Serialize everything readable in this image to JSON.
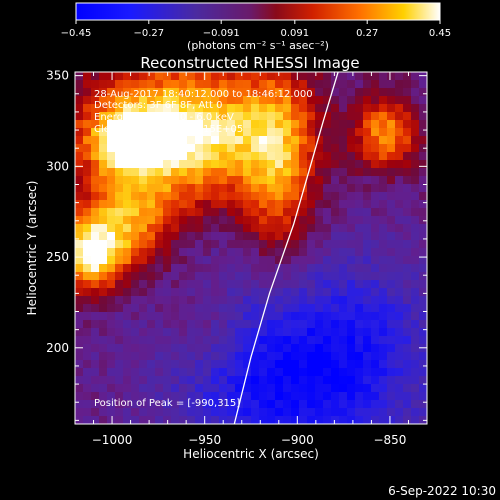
{
  "colorbar": {
    "ticks": [
      "-0.45",
      "-0.27",
      "-0.091",
      "0.091",
      "0.27",
      "0.45"
    ],
    "values": [
      -0.45,
      -0.27,
      -0.091,
      0.091,
      0.27,
      0.45
    ],
    "units_label": "(photons cm⁻² s⁻¹ asec⁻²)",
    "range": [
      -0.45,
      0.45
    ]
  },
  "footer": {
    "date": "6-Sep-2022 10:30"
  },
  "chart_data": {
    "type": "heatmap",
    "title": "Reconstructed RHESSI Image",
    "xlabel": "Heliocentric X (arcsec)",
    "ylabel": "Heliocentric Y (arcsec)",
    "xlim": [
      -1020,
      -830
    ],
    "ylim": [
      158,
      352
    ],
    "x_ticks": [
      -1000,
      -950,
      -900,
      -850
    ],
    "y_ticks": [
      200,
      250,
      300,
      350
    ],
    "annotations": [
      "28-Aug-2017 18:40:12.000 to 18:46:12.000",
      "Detectors: 3F 6F 8F, Att 0",
      "Energy Range: 3.0 - 6.0 keV",
      "Clean    Total Counts: 2.15E+05"
    ],
    "peak_label": "Position of Peak = [-990,315]",
    "peak": {
      "x": -990,
      "y": 315
    },
    "limb_curve": [
      [
        -934,
        158
      ],
      [
        -925,
        195
      ],
      [
        -915,
        230
      ],
      [
        -902,
        268
      ],
      [
        -893,
        300
      ],
      [
        -886,
        325
      ],
      [
        -878,
        352
      ]
    ],
    "sources": [
      {
        "x": -965,
        "y": 318,
        "sx": 38,
        "sy": 26,
        "amp": 0.55
      },
      {
        "x": -990,
        "y": 315,
        "sx": 12,
        "sy": 10,
        "amp": 0.35
      },
      {
        "x": -1012,
        "y": 252,
        "sx": 12,
        "sy": 14,
        "amp": 0.5
      },
      {
        "x": -990,
        "y": 268,
        "sx": 16,
        "sy": 20,
        "amp": 0.3
      },
      {
        "x": -910,
        "y": 300,
        "sx": 14,
        "sy": 40,
        "amp": 0.3
      },
      {
        "x": -852,
        "y": 318,
        "sx": 12,
        "sy": 14,
        "amp": 0.35
      },
      {
        "x": -950,
        "y": 210,
        "sx": 16,
        "sy": 18,
        "amp": 0.12
      },
      {
        "x": -905,
        "y": 185,
        "sx": 45,
        "sy": 40,
        "amp": -0.35
      },
      {
        "x": -855,
        "y": 210,
        "sx": 25,
        "sy": 35,
        "amp": -0.1
      }
    ]
  }
}
